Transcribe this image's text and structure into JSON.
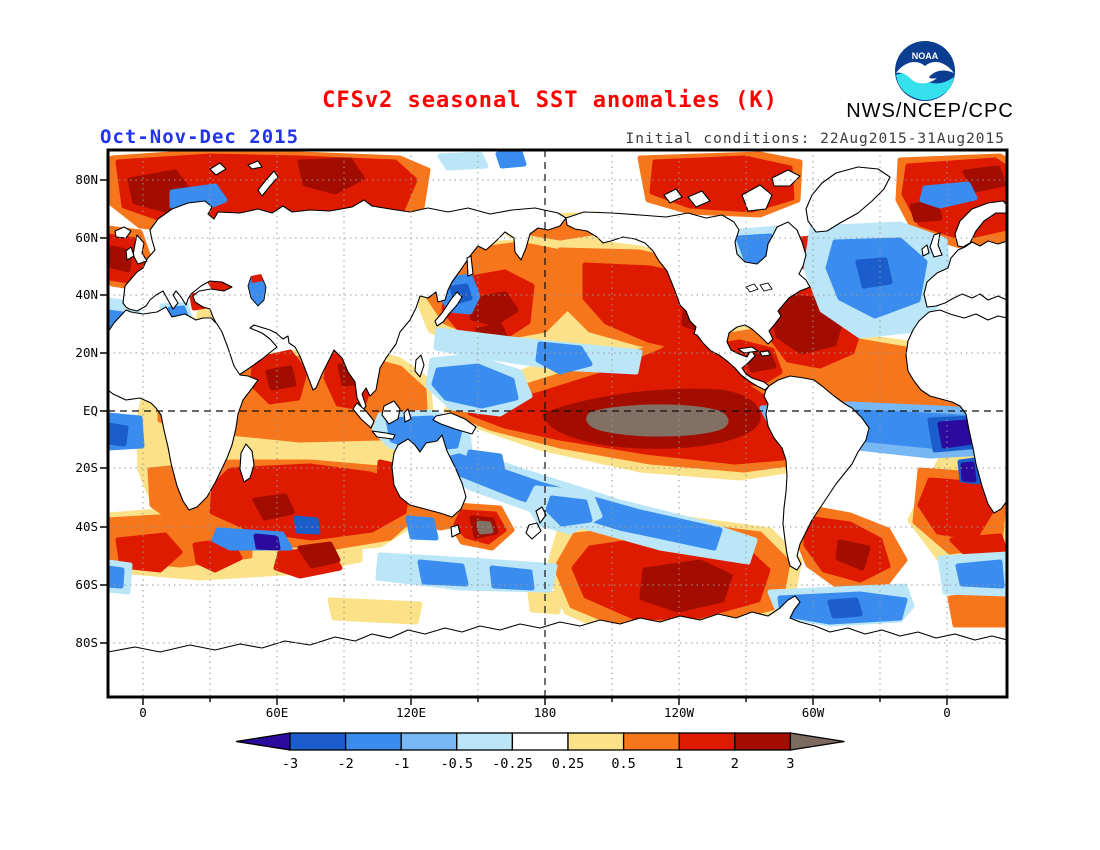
{
  "header": {
    "title": "CFSv2 seasonal SST anomalies (K)",
    "agency": "NWS/NCEP/CPC",
    "logo_text": "NOAA"
  },
  "subheader": {
    "season": "Oct-Nov-Dec 2015",
    "initial_conditions": "Initial conditions: 22Aug2015-31Aug2015"
  },
  "map": {
    "lat_ticks": [
      "80N",
      "60N",
      "40N",
      "20N",
      "EQ",
      "20S",
      "40S",
      "60S",
      "80S"
    ],
    "lon_ticks": [
      "0",
      "60E",
      "120E",
      "180",
      "120W",
      "60W",
      "0"
    ]
  },
  "colorbar": {
    "boundary_labels": [
      "-3",
      "-2",
      "-1",
      "-0.5",
      "-0.25",
      "0.25",
      "0.5",
      "1",
      "2",
      "3"
    ],
    "segment_colors": [
      "#1B5ECB",
      "#3A8CEE",
      "#77B7F3",
      "#BAE6F8",
      "#FFFFFF",
      "#FBE187",
      "#F8761B",
      "#DE1A00",
      "#A30D00"
    ],
    "below_min_color": "#2B0B9E",
    "above_max_color": "#7D6A5F",
    "above_max_map_color": "#837065",
    "units": "K"
  },
  "colors": {
    "title": "#FF0000",
    "season": "#2233EE",
    "initial_conditions": "#3C3C3C",
    "coastline": "#000000",
    "land": "#FFFFFF",
    "grid": "#999999",
    "frame": "#000000",
    "logo_navy": "#0B3D91",
    "logo_cyan": "#35E1ED"
  }
}
